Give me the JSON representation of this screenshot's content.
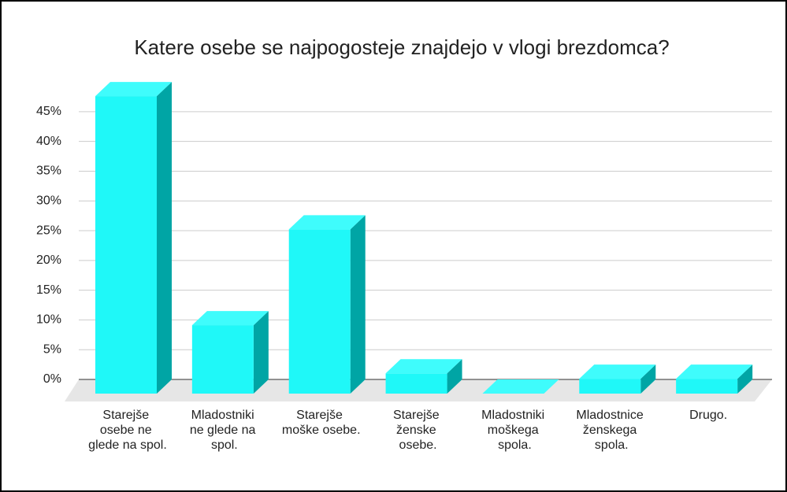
{
  "chart_data": {
    "type": "bar3d",
    "title": "Katere osebe se najpogosteje znajdejo v vlogi brezdomca?",
    "categories": [
      "Starejše osebe ne glede na spol.",
      "Mladostniki ne glede na spol.",
      "Starejše moške osebe.",
      "Starejše ženske osebe.",
      "Mladostniki moškega spola.",
      "Mladostnice ženskega spola.",
      "Drugo."
    ],
    "values": [
      50,
      11.5,
      27.6,
      3.4,
      0,
      2.5,
      2.5
    ],
    "color": "#1ff8f8",
    "ylim": [
      0,
      47.5
    ],
    "yticks": [
      {
        "value": 0,
        "label": "0%"
      },
      {
        "value": 5,
        "label": "5%"
      },
      {
        "value": 10,
        "label": "10%"
      },
      {
        "value": 15,
        "label": "15%"
      },
      {
        "value": 20,
        "label": "20%"
      },
      {
        "value": 25,
        "label": "25%"
      },
      {
        "value": 30,
        "label": "30%"
      },
      {
        "value": 35,
        "label": "35%"
      },
      {
        "value": 40,
        "label": "40%"
      },
      {
        "value": 45,
        "label": "45%"
      }
    ],
    "grid": true
  }
}
